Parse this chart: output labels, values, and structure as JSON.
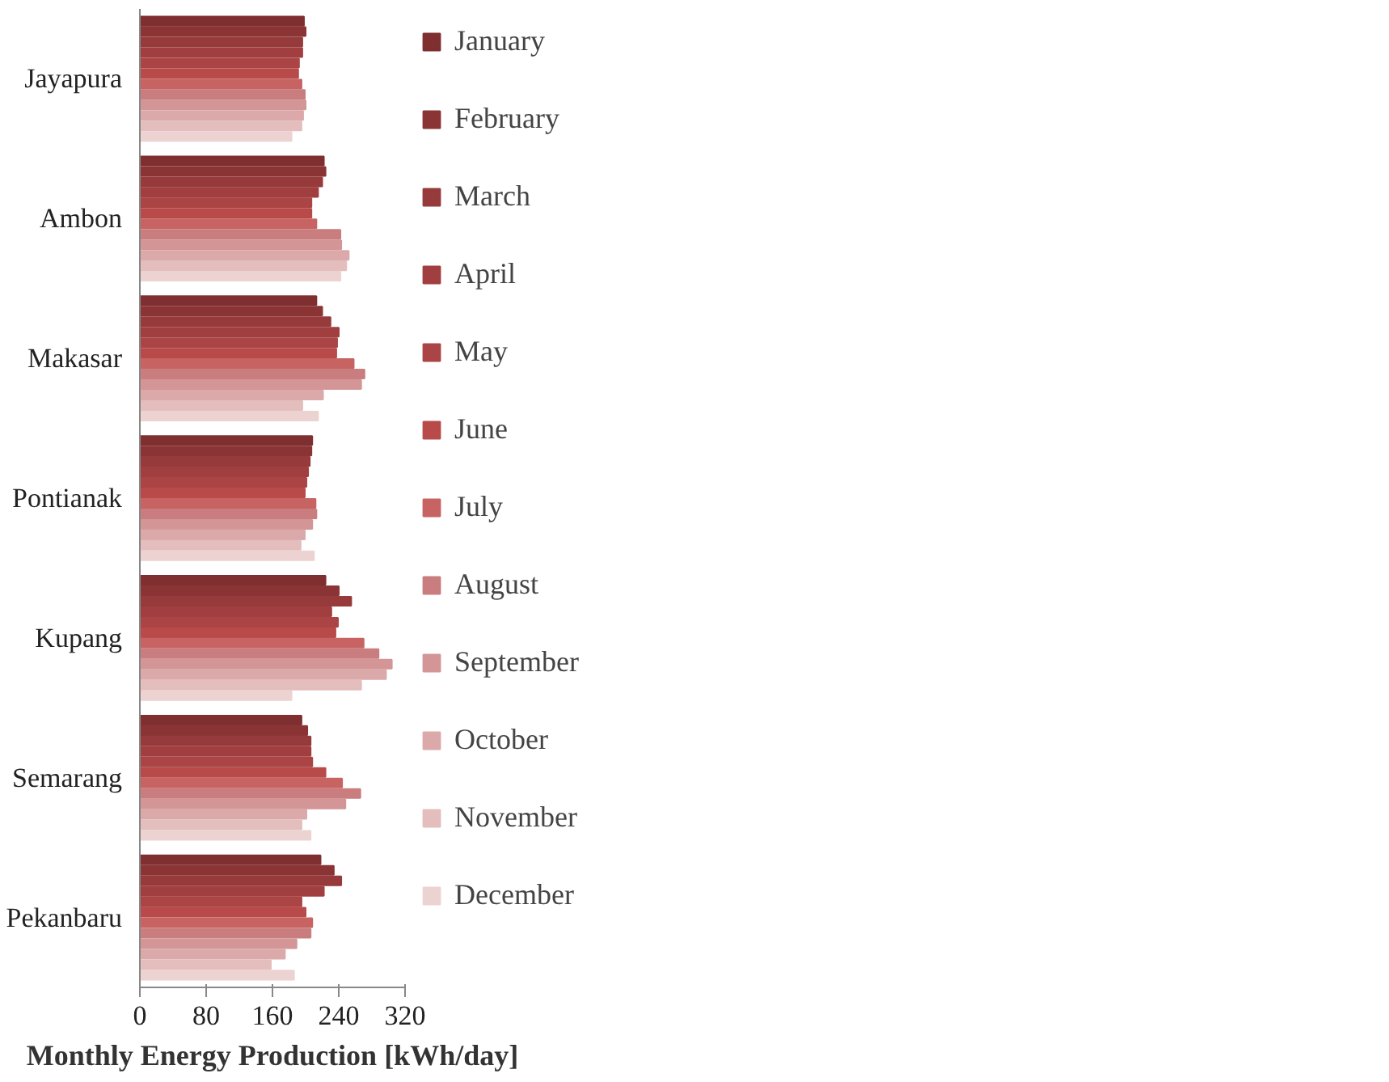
{
  "chart_data": {
    "type": "bar",
    "orientation": "horizontal",
    "xlabel": "Monthly Energy Production [kWh/day]",
    "categories": [
      "Jayapura",
      "Ambon",
      "Makasar",
      "Pontianak",
      "Kupang",
      "Semarang",
      "Pekanbaru"
    ],
    "xlim": [
      0,
      320
    ],
    "xticks": [
      0,
      80,
      160,
      240,
      320
    ],
    "grid": false,
    "legend": "right",
    "series": [
      {
        "name": "January",
        "color": "#7f2f30",
        "values": [
          198,
          222,
          213,
          208,
          224,
          195,
          218
        ]
      },
      {
        "name": "February",
        "color": "#8b3435",
        "values": [
          200,
          224,
          220,
          207,
          240,
          202,
          234
        ]
      },
      {
        "name": "March",
        "color": "#963a3b",
        "values": [
          196,
          220,
          230,
          205,
          255,
          206,
          243
        ]
      },
      {
        "name": "April",
        "color": "#a13f40",
        "values": [
          196,
          215,
          240,
          203,
          231,
          206,
          222
        ]
      },
      {
        "name": "May",
        "color": "#ab4445",
        "values": [
          192,
          207,
          238,
          201,
          239,
          208,
          195
        ]
      },
      {
        "name": "June",
        "color": "#b84a4a",
        "values": [
          191,
          207,
          237,
          199,
          236,
          224,
          200
        ]
      },
      {
        "name": "July",
        "color": "#c76463",
        "values": [
          195,
          213,
          258,
          212,
          270,
          244,
          208
        ]
      },
      {
        "name": "August",
        "color": "#c97d7e",
        "values": [
          199,
          242,
          271,
          213,
          288,
          266,
          206
        ]
      },
      {
        "name": "September",
        "color": "#d39596",
        "values": [
          200,
          243,
          267,
          208,
          304,
          248,
          189
        ]
      },
      {
        "name": "October",
        "color": "#dba9aa",
        "values": [
          197,
          252,
          221,
          199,
          297,
          201,
          175
        ]
      },
      {
        "name": "November",
        "color": "#e4bdbd",
        "values": [
          195,
          249,
          196,
          194,
          267,
          195,
          158
        ]
      },
      {
        "name": "December",
        "color": "#edd2d2",
        "values": [
          183,
          242,
          215,
          210,
          183,
          206,
          186
        ]
      }
    ]
  }
}
